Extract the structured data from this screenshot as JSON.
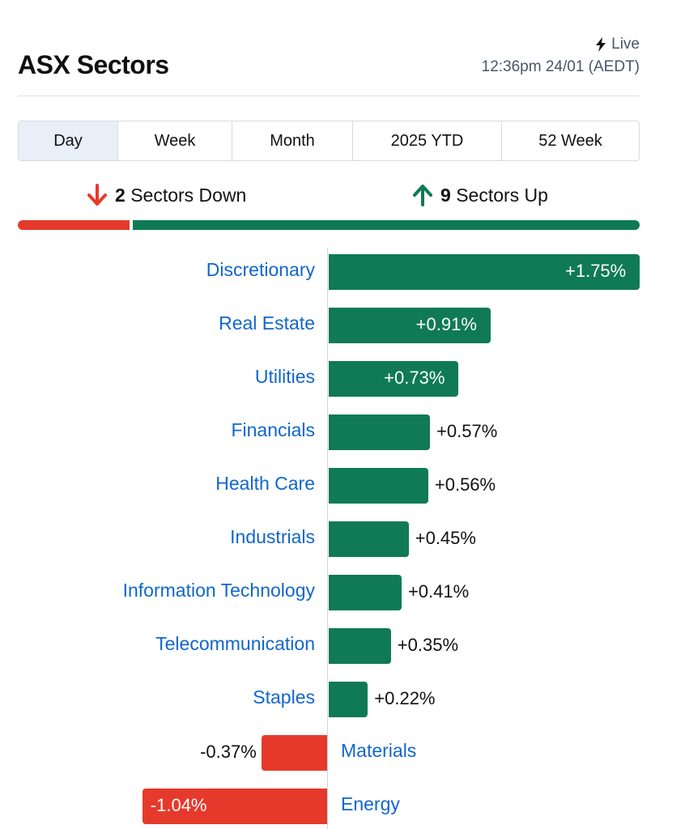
{
  "header": {
    "title": "ASX Sectors",
    "live_label": "Live",
    "timestamp": "12:36pm 24/01 (AEDT)"
  },
  "tabs": [
    "Day",
    "Week",
    "Month",
    "2025 YTD",
    "52 Week"
  ],
  "active_tab": "Day",
  "summary": {
    "down_count": "2",
    "down_label": "Sectors Down",
    "up_count": "9",
    "up_label": "Sectors Up"
  },
  "colors": {
    "positive": "#0f7a55",
    "negative": "#e53a2b",
    "link": "#1166cc"
  },
  "icons": {
    "live": "lightning-bolt-icon",
    "down": "arrow-down-icon",
    "up": "arrow-up-icon"
  },
  "chart_data": {
    "type": "bar",
    "orientation": "horizontal",
    "categories": [
      "Discretionary",
      "Real Estate",
      "Utilities",
      "Financials",
      "Health Care",
      "Industrials",
      "Information Technology",
      "Telecommunication",
      "Staples",
      "Materials",
      "Energy"
    ],
    "values": [
      1.75,
      0.91,
      0.73,
      0.57,
      0.56,
      0.45,
      0.41,
      0.35,
      0.22,
      -0.37,
      -1.04
    ],
    "value_labels": [
      "+1.75%",
      "+0.91%",
      "+0.73%",
      "+0.57%",
      "+0.56%",
      "+0.45%",
      "+0.41%",
      "+0.35%",
      "+0.22%",
      "-0.37%",
      "-1.04%"
    ],
    "unit": "%"
  }
}
